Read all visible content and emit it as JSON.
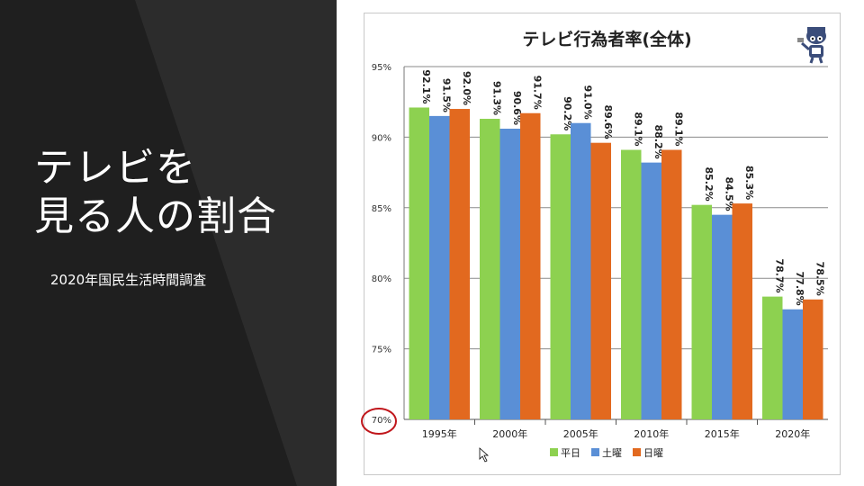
{
  "slide": {
    "title_line1": "テレビを",
    "title_line2": "見る人の割合",
    "subtitle": "2020年国民生活時間調査"
  },
  "colors": {
    "background_dark": "#1f1f1f",
    "weekday": "#8dd150",
    "saturday": "#5a8fd6",
    "sunday": "#e2691f",
    "highlight_circle": "#c0161b"
  },
  "icons": [
    "mascot-illustration"
  ],
  "chart_data": {
    "type": "bar",
    "title": "テレビ行為者率(全体)",
    "categories": [
      "1995年",
      "2000年",
      "2005年",
      "2010年",
      "2015年",
      "2020年"
    ],
    "series": [
      {
        "name": "平日",
        "values": [
          92.1,
          91.3,
          90.2,
          89.1,
          85.2,
          78.7
        ],
        "labels": [
          "92.1%",
          "91.3%",
          "90.2%",
          "89.1%",
          "85.2%",
          "78.7%"
        ]
      },
      {
        "name": "土曜",
        "values": [
          91.5,
          90.6,
          91.0,
          88.2,
          84.5,
          77.8
        ],
        "labels": [
          "91.5%",
          "90.6%",
          "91.0%",
          "88.2%",
          "84.5%",
          "77.8%"
        ]
      },
      {
        "name": "日曜",
        "values": [
          92.0,
          91.7,
          89.6,
          89.1,
          85.3,
          78.5
        ],
        "labels": [
          "92.0%",
          "91.7%",
          "89.6%",
          "89.1%",
          "85.3%",
          "78.5%"
        ]
      }
    ],
    "ylim": [
      70,
      95
    ],
    "yticks": [
      70,
      75,
      80,
      85,
      90,
      95
    ],
    "ytick_labels": [
      "70%",
      "75%",
      "80%",
      "85%",
      "90%",
      "95%"
    ],
    "highlighted_tick": "70%",
    "grid": true,
    "legend_position": "bottom"
  }
}
